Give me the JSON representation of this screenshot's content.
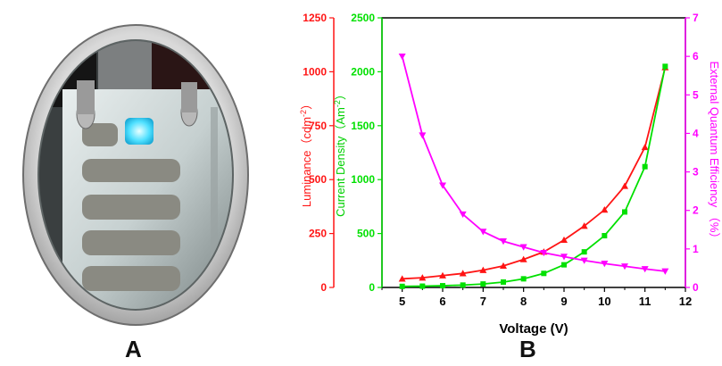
{
  "panel_labels": {
    "left": "A",
    "right": "B"
  },
  "colors": {
    "luminance": "#ff1414",
    "current_density": "#00e000",
    "eqe": "#ff00ff",
    "axis": "#000000"
  },
  "chart_data": {
    "type": "line",
    "xlabel": "Voltage (V)",
    "xlim": [
      4.5,
      12
    ],
    "xticks": [
      "5",
      "6",
      "7",
      "8",
      "9",
      "10",
      "11",
      "12"
    ],
    "axes": {
      "luminance": {
        "label_main": "Luminance（cdm",
        "label_sup": "-2",
        "label_end": "）",
        "ylim": [
          0,
          1250
        ],
        "ticks": [
          "0",
          "250",
          "500",
          "750",
          "1000",
          "1250"
        ]
      },
      "current_density": {
        "label_main": "Current Density（Am",
        "label_sup": "-2",
        "label_end": "）",
        "ylim": [
          0,
          2500
        ],
        "ticks": [
          "0",
          "500",
          "1000",
          "1500",
          "2000",
          "2500"
        ]
      },
      "eqe": {
        "label": "External Quantum Efficiency （%）",
        "ylim": [
          0,
          7
        ],
        "ticks": [
          "0",
          "1",
          "2",
          "3",
          "4",
          "5",
          "6",
          "7"
        ]
      }
    },
    "x": [
      5,
      5.5,
      6,
      6.5,
      7,
      7.5,
      8,
      8.5,
      9,
      9.5,
      10,
      10.5,
      11,
      11.5
    ],
    "series": [
      {
        "key": "luminance",
        "marker": "triangle-up",
        "values": [
          40,
          45,
          55,
          65,
          80,
          100,
          130,
          165,
          220,
          285,
          360,
          470,
          650,
          1020
        ]
      },
      {
        "key": "current_density",
        "marker": "square",
        "values": [
          10,
          12,
          16,
          22,
          32,
          50,
          80,
          130,
          210,
          330,
          480,
          700,
          1120,
          2050
        ]
      },
      {
        "key": "eqe",
        "marker": "triangle-down",
        "values": [
          6.0,
          3.95,
          2.65,
          1.9,
          1.45,
          1.2,
          1.05,
          0.9,
          0.8,
          0.7,
          0.62,
          0.55,
          0.48,
          0.42
        ]
      }
    ]
  }
}
